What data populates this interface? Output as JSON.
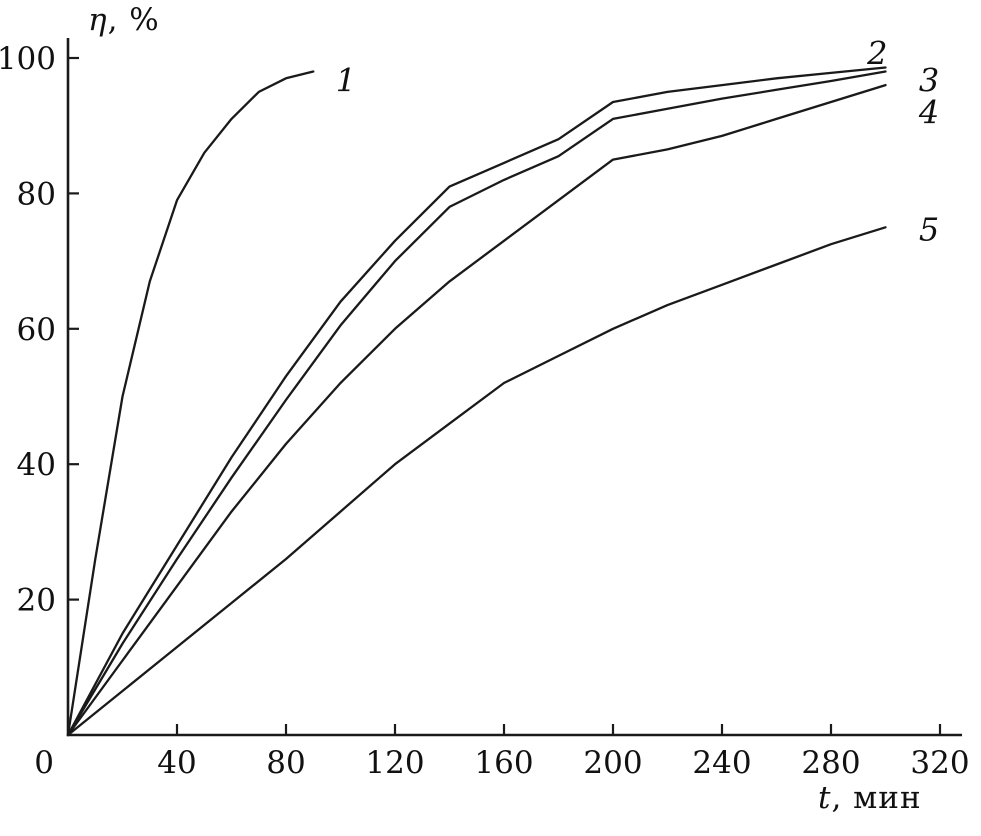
{
  "figure": {
    "background": "#ffffff",
    "line_color": "#1a1a1a"
  },
  "chart_data": {
    "type": "line",
    "title": "",
    "ylabel": "η, %",
    "xlabel": "t, мин",
    "ylabel_var": "η",
    "ylabel_rest": ", %",
    "xlabel_var": "t",
    "xlabel_rest": ", мин",
    "xlim": [
      0,
      330
    ],
    "ylim": [
      0,
      104
    ],
    "x_ticks": [
      40,
      80,
      120,
      160,
      200,
      240,
      280,
      320
    ],
    "y_ticks": [
      20,
      40,
      60,
      80,
      100
    ],
    "origin_label": "0",
    "grid": false,
    "legend_position": "inline-labels",
    "line_color": "#1a1a1a",
    "series": [
      {
        "name": "1",
        "t": [
          0,
          10,
          20,
          30,
          40,
          50,
          60,
          70,
          80,
          90
        ],
        "values": [
          0,
          26,
          50,
          67,
          79,
          86,
          91,
          95,
          97,
          98
        ],
        "label_pos": {
          "t": 102,
          "v": 96.5
        }
      },
      {
        "name": "2",
        "t": [
          0,
          20,
          40,
          60,
          80,
          100,
          120,
          140,
          160,
          180,
          200,
          220,
          240,
          260,
          280,
          300
        ],
        "values": [
          0,
          15,
          28,
          41,
          53,
          64,
          73,
          81,
          84.5,
          88,
          93.5,
          95,
          96,
          97,
          97.8,
          98.6
        ],
        "label_pos": {
          "t": 297,
          "v": 100.5
        }
      },
      {
        "name": "3",
        "t": [
          0,
          20,
          40,
          60,
          80,
          100,
          120,
          140,
          160,
          180,
          200,
          220,
          240,
          260,
          280,
          300
        ],
        "values": [
          0,
          13.5,
          26,
          38,
          49.5,
          60.5,
          70,
          78,
          82,
          85.5,
          91,
          92.5,
          94,
          95.3,
          96.6,
          98
        ],
        "label_pos": {
          "t": 316,
          "v": 96.5
        }
      },
      {
        "name": "4",
        "t": [
          0,
          20,
          40,
          60,
          80,
          100,
          120,
          140,
          160,
          180,
          200,
          220,
          240,
          260,
          280,
          300
        ],
        "values": [
          0,
          11,
          22,
          33,
          43,
          52,
          60,
          67,
          73,
          79,
          85,
          86.5,
          88.5,
          91,
          93.5,
          96
        ],
        "label_pos": {
          "t": 316,
          "v": 91.8
        }
      },
      {
        "name": "5",
        "t": [
          0,
          20,
          40,
          60,
          80,
          100,
          120,
          140,
          160,
          180,
          200,
          220,
          240,
          260,
          280,
          300
        ],
        "values": [
          0,
          6.5,
          13,
          19.5,
          26,
          33,
          40,
          46,
          52,
          56,
          60,
          63.5,
          66.5,
          69.5,
          72.5,
          75
        ],
        "label_pos": {
          "t": 316,
          "v": 74.5
        }
      }
    ]
  }
}
